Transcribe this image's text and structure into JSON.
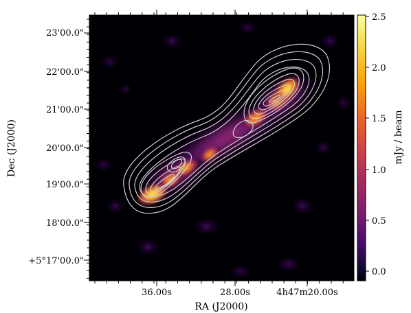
{
  "figure": {
    "type": "radio-continuum-map",
    "colormap": "inferno",
    "background_color": "#000004",
    "contour_color": "#cfcfcf"
  },
  "axes": {
    "xlabel": "RA (J2000)",
    "ylabel": "Dec (J2000)",
    "x_ticks": [
      "36.00s",
      "28.00s",
      "4h47m20.00s"
    ],
    "y_ticks": [
      "23'00.0\"",
      "22'00.0\"",
      "21'00.0\"",
      "20'00.0\"",
      "19'00.0\"",
      "18'00.0\"",
      "+5°17'00.0\""
    ]
  },
  "colorbar": {
    "label": "mJy / beam",
    "min": -0.1,
    "max": 2.5,
    "ticks": [
      "2.5",
      "2.0",
      "1.5",
      "1.0",
      "0.5",
      "0.0"
    ]
  }
}
